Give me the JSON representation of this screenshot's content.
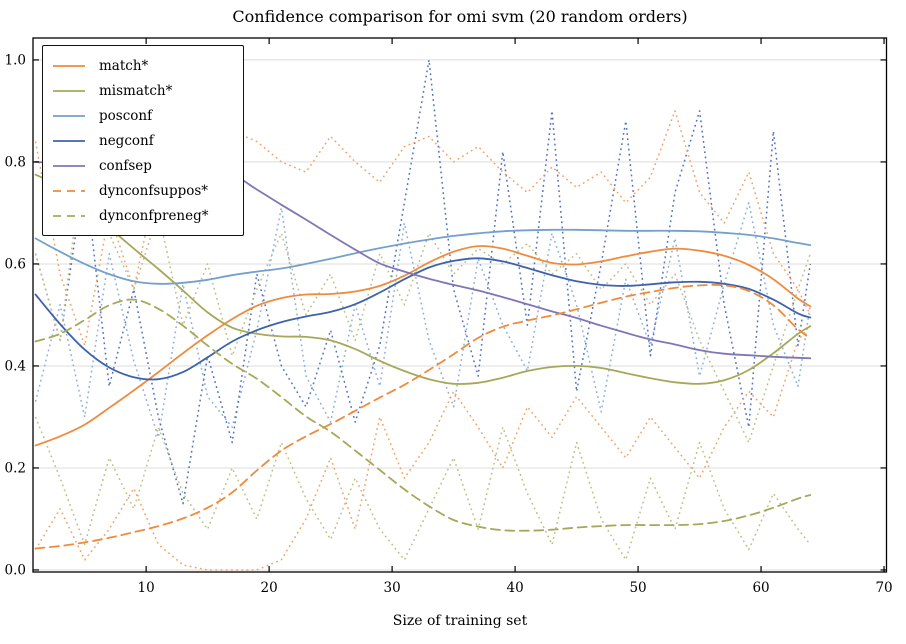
{
  "chart_data": {
    "type": "line",
    "title": "Confidence comparison for omi svm (20 random orders)",
    "xlabel": "Size of training set",
    "ylabel": "",
    "xlim": [
      0.8,
      70.2
    ],
    "ylim": [
      -0.004,
      1.043
    ],
    "x_ticks": [
      10,
      20,
      30,
      40,
      50,
      60,
      70
    ],
    "y_ticks": [
      0.0,
      0.2,
      0.4,
      0.6,
      0.8,
      1.0
    ],
    "grid": "horizontal",
    "legend_position": "upper-left",
    "grid_color": "#dcdcdc",
    "axis_color": "#000000",
    "x": [
      1,
      3,
      5,
      7,
      9,
      11,
      13,
      15,
      17,
      19,
      21,
      23,
      25,
      27,
      29,
      31,
      33,
      35,
      37,
      39,
      41,
      43,
      45,
      47,
      49,
      51,
      53,
      55,
      57,
      59,
      61,
      63,
      64
    ],
    "series": [
      {
        "name": "run-noise-blue-steel",
        "label": "",
        "color": "#8db0d8",
        "style": "dotted",
        "width": 1.5,
        "in_legend": false,
        "y": [
          0.33,
          0.52,
          0.3,
          0.62,
          0.41,
          0.26,
          0.56,
          0.34,
          0.28,
          0.47,
          0.71,
          0.38,
          0.29,
          0.52,
          0.36,
          0.68,
          0.45,
          0.32,
          0.61,
          0.48,
          0.39,
          0.66,
          0.52,
          0.31,
          0.57,
          0.44,
          0.65,
          0.38,
          0.56,
          0.72,
          0.48,
          0.36,
          0.52
        ]
      },
      {
        "name": "run-noise-blue-navy",
        "label": "",
        "color": "#5272bd",
        "style": "dotted",
        "width": 1.5,
        "in_legend": false,
        "y": [
          0.62,
          0.45,
          0.78,
          0.36,
          0.55,
          0.3,
          0.13,
          0.42,
          0.25,
          0.58,
          0.4,
          0.32,
          0.47,
          0.29,
          0.44,
          0.72,
          1.0,
          0.55,
          0.38,
          0.82,
          0.48,
          0.9,
          0.35,
          0.6,
          0.88,
          0.42,
          0.74,
          0.9,
          0.52,
          0.28,
          0.86,
          0.44,
          0.6
        ]
      },
      {
        "name": "run-noise-orange-high",
        "label": "",
        "color": "#f3a367",
        "style": "dotted",
        "width": 1.5,
        "in_legend": false,
        "y": [
          0.84,
          0.58,
          0.44,
          0.7,
          0.55,
          0.78,
          0.66,
          0.82,
          0.86,
          0.84,
          0.8,
          0.78,
          0.85,
          0.8,
          0.76,
          0.83,
          0.85,
          0.8,
          0.83,
          0.78,
          0.74,
          0.79,
          0.75,
          0.78,
          0.72,
          0.77,
          0.9,
          0.74,
          0.68,
          0.78,
          0.62,
          0.55,
          0.5
        ]
      },
      {
        "name": "run-noise-orange-low",
        "label": "",
        "color": "#f3a367",
        "style": "dotted",
        "width": 1.5,
        "in_legend": false,
        "y": [
          0.04,
          0.12,
          0.02,
          0.08,
          0.16,
          0.05,
          0.01,
          0.0,
          0.0,
          0.0,
          0.02,
          0.1,
          0.22,
          0.08,
          0.3,
          0.18,
          0.25,
          0.35,
          0.28,
          0.2,
          0.32,
          0.26,
          0.34,
          0.28,
          0.22,
          0.3,
          0.24,
          0.18,
          0.28,
          0.35,
          0.3,
          0.45,
          0.48
        ]
      },
      {
        "name": "run-noise-olive-high",
        "label": "",
        "color": "#bdc184",
        "style": "dotted",
        "width": 1.5,
        "in_legend": false,
        "y": [
          0.62,
          0.45,
          0.83,
          0.66,
          0.55,
          0.7,
          0.48,
          0.6,
          0.42,
          0.55,
          0.66,
          0.5,
          0.58,
          0.45,
          0.62,
          0.52,
          0.66,
          0.58,
          0.63,
          0.6,
          0.64,
          0.58,
          0.62,
          0.55,
          0.6,
          0.52,
          0.58,
          0.45,
          0.35,
          0.25,
          0.4,
          0.55,
          0.62
        ]
      },
      {
        "name": "run-noise-olive-low",
        "label": "",
        "color": "#bdc184",
        "style": "dotted",
        "width": 1.5,
        "in_legend": false,
        "y": [
          0.3,
          0.18,
          0.05,
          0.22,
          0.12,
          0.28,
          0.15,
          0.08,
          0.2,
          0.1,
          0.25,
          0.14,
          0.06,
          0.18,
          0.08,
          0.02,
          0.12,
          0.22,
          0.08,
          0.28,
          0.15,
          0.05,
          0.25,
          0.1,
          0.02,
          0.18,
          0.08,
          0.25,
          0.12,
          0.04,
          0.15,
          0.08,
          0.05
        ]
      },
      {
        "name": "match",
        "label": "match*",
        "color": "#ef8b3c",
        "style": "solid",
        "width": 1.8,
        "in_legend": true,
        "y": [
          0.244,
          0.262,
          0.285,
          0.318,
          0.352,
          0.388,
          0.425,
          0.46,
          0.492,
          0.518,
          0.533,
          0.54,
          0.541,
          0.546,
          0.557,
          0.577,
          0.603,
          0.624,
          0.635,
          0.63,
          0.616,
          0.602,
          0.599,
          0.605,
          0.615,
          0.624,
          0.63,
          0.626,
          0.616,
          0.598,
          0.57,
          0.532,
          0.517
        ]
      },
      {
        "name": "mismatch",
        "label": "mismatch*",
        "color": "#a5a957",
        "style": "solid",
        "width": 1.8,
        "in_legend": true,
        "y": [
          0.775,
          0.752,
          0.718,
          0.672,
          0.63,
          0.59,
          0.548,
          0.505,
          0.475,
          0.463,
          0.458,
          0.457,
          0.45,
          0.433,
          0.41,
          0.39,
          0.374,
          0.365,
          0.367,
          0.377,
          0.39,
          0.398,
          0.4,
          0.396,
          0.386,
          0.376,
          0.368,
          0.365,
          0.372,
          0.392,
          0.425,
          0.463,
          0.478
        ]
      },
      {
        "name": "posconf",
        "label": "posconf",
        "color": "#74a0ca",
        "style": "solid",
        "width": 1.8,
        "in_legend": true,
        "y": [
          0.65,
          0.624,
          0.6,
          0.58,
          0.566,
          0.561,
          0.563,
          0.569,
          0.578,
          0.585,
          0.591,
          0.6,
          0.61,
          0.621,
          0.631,
          0.64,
          0.648,
          0.655,
          0.66,
          0.664,
          0.666,
          0.667,
          0.667,
          0.666,
          0.665,
          0.665,
          0.665,
          0.664,
          0.661,
          0.657,
          0.65,
          0.641,
          0.637
        ]
      },
      {
        "name": "negconf",
        "label": "negconf",
        "color": "#3e62ab",
        "style": "solid",
        "width": 1.8,
        "in_legend": true,
        "y": [
          0.54,
          0.482,
          0.432,
          0.397,
          0.378,
          0.374,
          0.388,
          0.417,
          0.448,
          0.47,
          0.486,
          0.497,
          0.506,
          0.521,
          0.544,
          0.57,
          0.593,
          0.606,
          0.611,
          0.605,
          0.592,
          0.578,
          0.566,
          0.559,
          0.557,
          0.56,
          0.564,
          0.565,
          0.561,
          0.551,
          0.53,
          0.503,
          0.495
        ]
      },
      {
        "name": "confsep",
        "label": "confsep",
        "color": "#8076b5",
        "style": "solid",
        "width": 1.8,
        "in_legend": true,
        "y": [
          0.8,
          0.797,
          0.793,
          0.79,
          0.787,
          0.784,
          0.781,
          0.778,
          0.775,
          0.746,
          0.716,
          0.687,
          0.657,
          0.628,
          0.601,
          0.585,
          0.571,
          0.559,
          0.548,
          0.535,
          0.521,
          0.507,
          0.494,
          0.479,
          0.465,
          0.452,
          0.442,
          0.431,
          0.424,
          0.421,
          0.418,
          0.416,
          0.415
        ]
      },
      {
        "name": "dynconfsuppos",
        "label": "dynconfsuppos*",
        "color": "#ef8b3c",
        "style": "dashed",
        "width": 1.8,
        "in_legend": true,
        "y": [
          0.042,
          0.047,
          0.054,
          0.063,
          0.074,
          0.086,
          0.101,
          0.122,
          0.152,
          0.195,
          0.234,
          0.262,
          0.286,
          0.312,
          0.338,
          0.363,
          0.392,
          0.423,
          0.455,
          0.477,
          0.489,
          0.499,
          0.511,
          0.524,
          0.536,
          0.545,
          0.553,
          0.558,
          0.558,
          0.547,
          0.519,
          0.472,
          0.455
        ]
      },
      {
        "name": "dynconfpreneg",
        "label": "dynconfpreneg*",
        "color": "#a5a957",
        "style": "dashed",
        "width": 1.8,
        "in_legend": true,
        "y": [
          0.448,
          0.463,
          0.49,
          0.519,
          0.53,
          0.512,
          0.479,
          0.44,
          0.404,
          0.375,
          0.339,
          0.301,
          0.271,
          0.234,
          0.196,
          0.158,
          0.125,
          0.098,
          0.085,
          0.078,
          0.077,
          0.079,
          0.083,
          0.086,
          0.088,
          0.088,
          0.088,
          0.09,
          0.096,
          0.107,
          0.122,
          0.14,
          0.147
        ]
      }
    ]
  }
}
